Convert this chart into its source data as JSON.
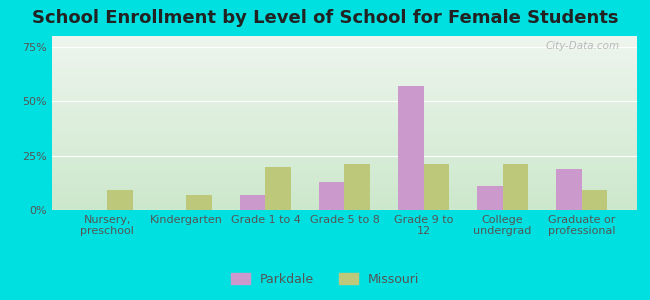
{
  "title": "School Enrollment by Level of School for Female Students",
  "categories": [
    "Nursery,\npreschool",
    "Kindergarten",
    "Grade 1 to 4",
    "Grade 5 to 8",
    "Grade 9 to\n12",
    "College\nundergrad",
    "Graduate or\nprofessional"
  ],
  "parkdale": [
    0,
    0,
    7,
    13,
    57,
    11,
    19
  ],
  "missouri": [
    9,
    7,
    20,
    21,
    21,
    21,
    9
  ],
  "parkdale_color": "#cc99cc",
  "missouri_color": "#bec87a",
  "background_outer": "#00e0e0",
  "background_inner_top": "#eef5ee",
  "background_inner_bottom": "#cce8cc",
  "ylim": [
    0,
    80
  ],
  "yticks": [
    0,
    25,
    50,
    75
  ],
  "ytick_labels": [
    "0%",
    "25%",
    "50%",
    "75%"
  ],
  "title_fontsize": 13,
  "tick_fontsize": 8,
  "legend_fontsize": 9,
  "bar_width": 0.32,
  "watermark": "City-Data.com"
}
